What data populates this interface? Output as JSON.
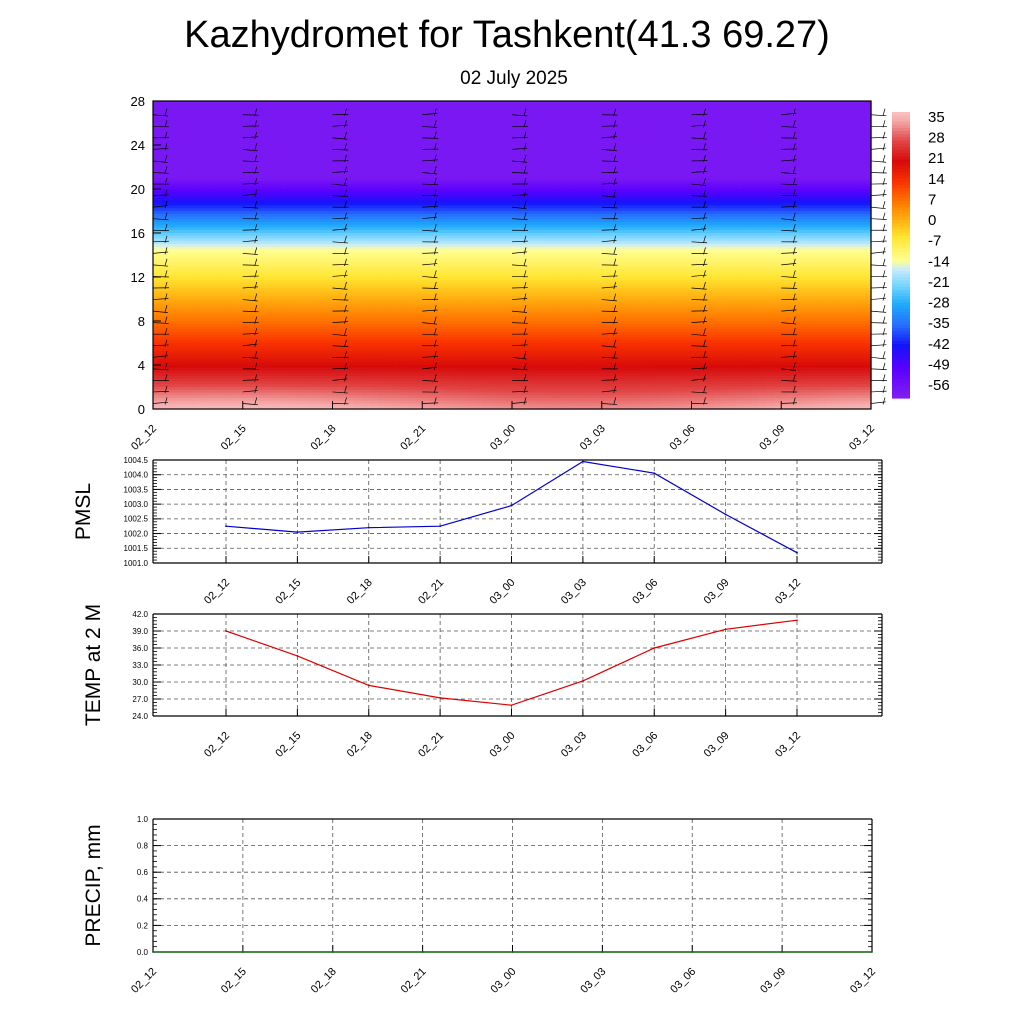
{
  "title": "Kazhydromet for Tashkent(41.3 69.27)",
  "subtitle": "02 July 2025",
  "chart_data": [
    {
      "type": "heatmap",
      "name": "vertical-temperature-cross-section",
      "x_labels": [
        "02_12",
        "02_15",
        "02_18",
        "02_21",
        "03_00",
        "03_03",
        "03_06",
        "03_09",
        "03_12"
      ],
      "y_ticks": [
        0,
        4,
        8,
        12,
        16,
        20,
        24,
        28
      ],
      "ylim": [
        0,
        28
      ],
      "colorbar_labels": [
        35,
        28,
        21,
        14,
        7,
        0,
        -7,
        -14,
        -21,
        -28,
        -35,
        -42,
        -49,
        -56
      ],
      "colorbar_range": [
        -60,
        38
      ],
      "wind_barbs": true
    },
    {
      "type": "line",
      "name": "pmsl",
      "ylabel": "PMSL",
      "x": [
        "02_12",
        "02_15",
        "02_18",
        "02_21",
        "03_00",
        "03_03",
        "03_06",
        "03_09",
        "03_12"
      ],
      "series": [
        {
          "color": "#0000cc",
          "values": [
            1002.25,
            1002.05,
            1002.2,
            1002.25,
            1002.95,
            1004.45,
            1004.05,
            1002.65,
            1001.35
          ]
        }
      ],
      "ylim": [
        1001.0,
        1004.5
      ],
      "y_ticks": [
        "1001.0",
        "1001.5",
        "1002.0",
        "1002.5",
        "1003.0",
        "1003.5",
        "1004.0",
        "1004.5"
      ],
      "grid": true
    },
    {
      "type": "line",
      "name": "temp-2m",
      "ylabel": "TEMP at 2 M",
      "x": [
        "02_12",
        "02_15",
        "02_18",
        "02_21",
        "03_00",
        "03_03",
        "03_06",
        "03_09",
        "03_12"
      ],
      "series": [
        {
          "color": "#dd0000",
          "values": [
            39.0,
            34.6,
            29.4,
            27.2,
            25.9,
            30.2,
            36.0,
            39.3,
            40.9
          ]
        }
      ],
      "ylim": [
        24.0,
        42.0
      ],
      "y_ticks": [
        "24.0",
        "27.0",
        "30.0",
        "33.0",
        "36.0",
        "39.0",
        "42.0"
      ],
      "grid": true
    },
    {
      "type": "line",
      "name": "precipitation",
      "ylabel": "PRECIP, mm",
      "x": [
        "02_12",
        "02_15",
        "02_18",
        "02_21",
        "03_00",
        "03_03",
        "03_06",
        "03_09",
        "03_12"
      ],
      "series": [
        {
          "color": "#006600",
          "values": [
            0,
            0,
            0,
            0,
            0,
            0,
            0,
            0,
            0
          ]
        }
      ],
      "ylim": [
        0.0,
        1.0
      ],
      "y_ticks": [
        "0.0",
        "0.2",
        "0.4",
        "0.6",
        "0.8",
        "1.0"
      ],
      "grid": true
    }
  ]
}
